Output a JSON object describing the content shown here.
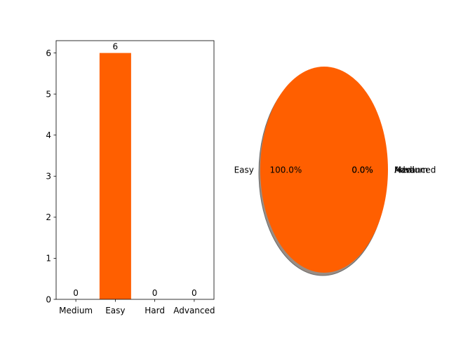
{
  "chart_data": [
    {
      "type": "bar",
      "categories": [
        "Medium",
        "Easy",
        "Hard",
        "Advanced"
      ],
      "values": [
        0,
        6,
        0,
        0
      ],
      "data_labels": [
        "0",
        "6",
        "0",
        "0"
      ],
      "ylim": [
        0,
        6.3
      ],
      "yticks": [
        "0",
        "1",
        "2",
        "3",
        "4",
        "5",
        "6"
      ],
      "grid": false,
      "color": "#ff5f00"
    },
    {
      "type": "pie",
      "labels": [
        "Medium",
        "Easy",
        "Hard",
        "Advanced"
      ],
      "values": [
        0,
        6,
        0,
        0
      ],
      "percent_labels": [
        "0.0%",
        "100.0%",
        "0.0%",
        "0.0%"
      ],
      "color": "#ff5f00",
      "shadow": true
    }
  ]
}
